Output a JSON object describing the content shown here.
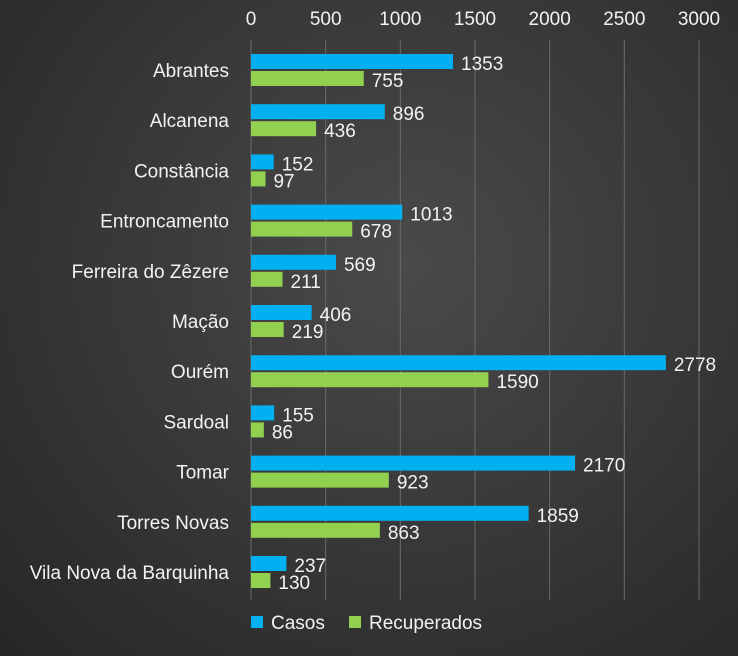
{
  "chart_data": {
    "type": "bar",
    "orientation": "horizontal",
    "categories": [
      "Abrantes",
      "Alcanena",
      "Constância",
      "Entroncamento",
      "Ferreira do Zêzere",
      "Mação",
      "Ourém",
      "Sardoal",
      "Tomar",
      "Torres Novas",
      "Vila Nova da Barquinha"
    ],
    "series": [
      {
        "name": "Casos",
        "color": "#00b0f0",
        "values": [
          1353,
          896,
          152,
          1013,
          569,
          406,
          2778,
          155,
          2170,
          1859,
          237
        ]
      },
      {
        "name": "Recuperados",
        "color": "#92d050",
        "values": [
          755,
          436,
          97,
          678,
          211,
          219,
          1590,
          86,
          923,
          863,
          130
        ]
      }
    ],
    "xlim": [
      0,
      3000
    ],
    "x_ticks": [
      0,
      500,
      1000,
      1500,
      2000,
      2500,
      3000
    ],
    "x_axis_position": "top",
    "grid": true,
    "legend_position": "bottom",
    "data_labels": true,
    "title": "",
    "xlabel": "",
    "ylabel": ""
  }
}
